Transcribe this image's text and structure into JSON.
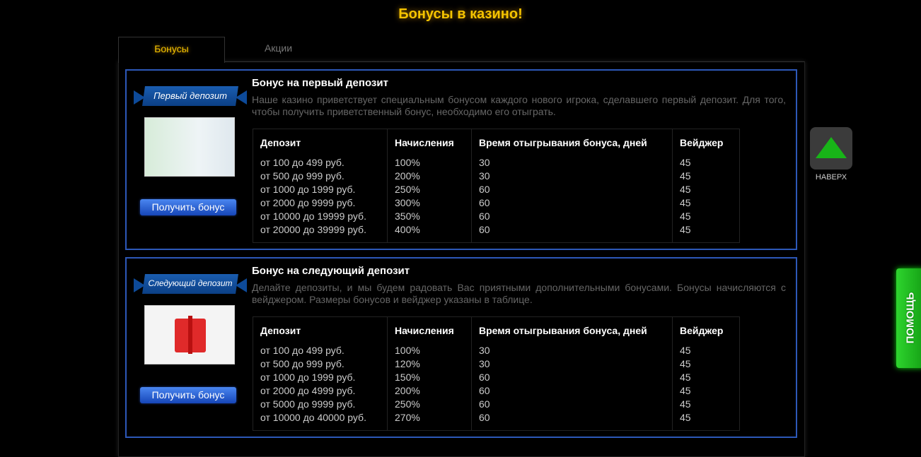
{
  "title": "Бонусы в казино!",
  "tabs": [
    {
      "label": "Бонусы",
      "active": true
    },
    {
      "label": "Акции",
      "active": false
    }
  ],
  "headers": [
    "Депозит",
    "Начисления",
    "Время отыгрывания бонуса, дней",
    "Вейджер"
  ],
  "cards": [
    {
      "ribbon": "Первый депозит",
      "title": "Бонус на первый депозит",
      "desc": "Наше казино приветствует специальным бонусом каждого нового игрока, сделавшего первый депозит. Для того, чтобы получить приветственный бонус, необходимо его отыграть.",
      "button": "Получить бонус",
      "deposit": "от 100 до 499 руб.\nот 500 до 999 руб.\nот 1000 до 1999 руб.\nот 2000 до 9999 руб.\nот 10000 до 19999 руб.\nот 20000 до 39999 руб.",
      "percent": "100%\n200%\n250%\n300%\n350%\n400%",
      "days": "30\n30\n60\n60\n60\n60",
      "wager": "45\n45\n45\n45\n45\n45"
    },
    {
      "ribbon": "Следующий депозит",
      "title": "Бонус на следующий депозит",
      "desc": "Делайте депозиты, и мы будем радовать Вас приятными дополнительными бонусами. Бонусы начисляются с вейджером. Размеры бонусов и вейджер указаны в таблице.",
      "button": "Получить бонус",
      "deposit": "от 100 до 499 руб.\nот 500 до 999 руб.\nот 1000 до 1999 руб.\nот 2000 до 4999 руб.\nот 5000 до 9999 руб.\nот 10000 до 40000 руб.",
      "percent": "100%\n120%\n150%\n200%\n250%\n270%",
      "days": "30\n30\n60\n60\n60\n60",
      "wager": "45\n45\n45\n45\n45\n45"
    }
  ],
  "up_label": "НАВЕРХ",
  "help_label": "ПОМОЩЬ",
  "colors": {
    "accent": "#f5c400",
    "card_border": "#2d58b8",
    "help": "#22c022"
  }
}
